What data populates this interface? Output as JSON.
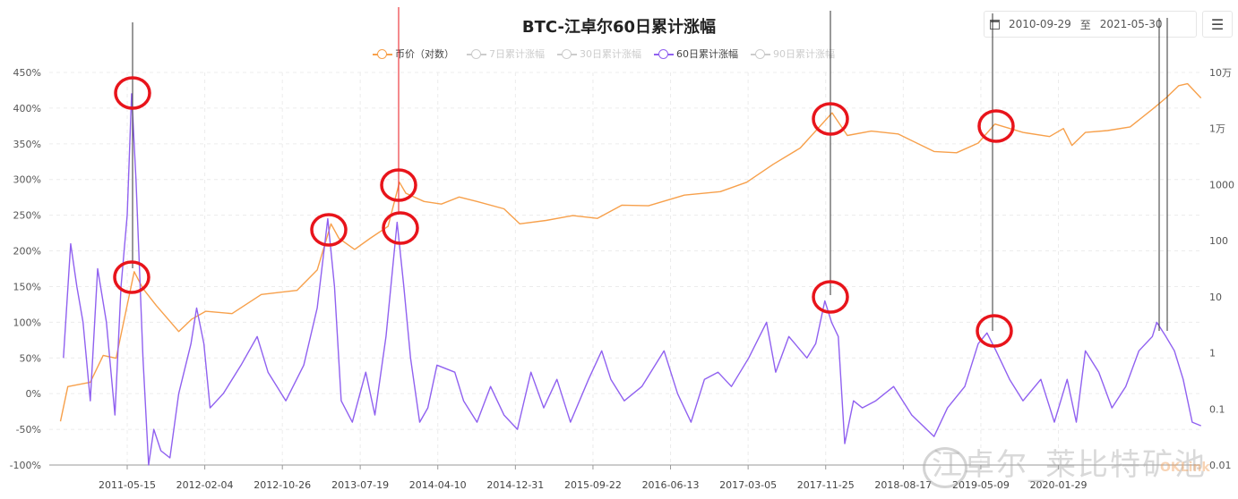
{
  "chart_data": {
    "type": "line",
    "title": "BTC-江卓尔60日累计涨幅",
    "legend": [
      {
        "label": "币价（对数）",
        "color": "#f7a04b",
        "active": true
      },
      {
        "label": "7日累计涨幅",
        "color": "#cccccc",
        "active": false
      },
      {
        "label": "30日累计涨幅",
        "color": "#cccccc",
        "active": false
      },
      {
        "label": "60日累计涨幅",
        "color": "#9061f0",
        "active": true
      },
      {
        "label": "90日累计涨幅",
        "color": "#cccccc",
        "active": false
      }
    ],
    "legend_position": "top-center",
    "x_range": [
      "2010-09-29",
      "2021-05-30"
    ],
    "x_ticks": [
      "2011-05-15",
      "2012-02-04",
      "2012-10-26",
      "2013-07-19",
      "2014-04-10",
      "2014-12-31",
      "2015-09-22",
      "2016-06-13",
      "2017-03-05",
      "2017-11-25",
      "2018-08-17",
      "2019-05-09",
      "2020-01-29"
    ],
    "y_left": {
      "ticks": [
        "450%",
        "400%",
        "350%",
        "300%",
        "250%",
        "200%",
        "150%",
        "100%",
        "50%",
        "0%",
        "-50%",
        "-100%"
      ],
      "range": [
        -100,
        450
      ],
      "unit": "%"
    },
    "y_right": {
      "ticks": [
        "10万",
        "1万",
        "1000",
        "100",
        "10",
        "1",
        "0.1",
        "0.01"
      ],
      "scale": "log",
      "range": [
        0.01,
        100000
      ]
    },
    "grid": true,
    "series": [
      {
        "name": "币价（对数）",
        "axis": "right",
        "color": "#f7a04b",
        "points": [
          [
            "2010-09-29",
            0.06
          ],
          [
            "2010-10-24",
            0.25
          ],
          [
            "2011-01-09",
            0.3
          ],
          [
            "2011-02-22",
            0.9
          ],
          [
            "2011-04-07",
            0.8
          ],
          [
            "2011-04-30",
            3
          ],
          [
            "2011-06-08",
            28
          ],
          [
            "2011-07-08",
            14
          ],
          [
            "2011-08-22",
            7
          ],
          [
            "2011-11-07",
            2.4
          ],
          [
            "2011-12-22",
            4
          ],
          [
            "2012-02-07",
            5.5
          ],
          [
            "2012-05-07",
            5
          ],
          [
            "2012-08-15",
            11
          ],
          [
            "2012-12-15",
            13
          ],
          [
            "2013-02-22",
            30
          ],
          [
            "2013-04-10",
            200
          ],
          [
            "2013-05-07",
            110
          ],
          [
            "2013-06-30",
            70
          ],
          [
            "2013-08-22",
            110
          ],
          [
            "2013-10-22",
            180
          ],
          [
            "2013-11-30",
            1100
          ],
          [
            "2013-12-22",
            700
          ],
          [
            "2014-02-22",
            500
          ],
          [
            "2014-04-22",
            450
          ],
          [
            "2014-06-22",
            600
          ],
          [
            "2014-08-22",
            500
          ],
          [
            "2014-11-22",
            370
          ],
          [
            "2015-01-15",
            200
          ],
          [
            "2015-04-15",
            230
          ],
          [
            "2015-07-15",
            280
          ],
          [
            "2015-10-07",
            250
          ],
          [
            "2015-12-30",
            430
          ],
          [
            "2016-03-30",
            420
          ],
          [
            "2016-07-30",
            650
          ],
          [
            "2016-11-30",
            750
          ],
          [
            "2017-02-28",
            1100
          ],
          [
            "2017-05-30",
            2300
          ],
          [
            "2017-08-30",
            4500
          ],
          [
            "2017-12-17",
            19000
          ],
          [
            "2018-02-07",
            7500
          ],
          [
            "2018-04-30",
            9000
          ],
          [
            "2018-07-30",
            8000
          ],
          [
            "2018-11-30",
            3900
          ],
          [
            "2019-02-15",
            3700
          ],
          [
            "2019-04-30",
            5500
          ],
          [
            "2019-06-26",
            12000
          ],
          [
            "2019-09-30",
            8500
          ],
          [
            "2019-12-30",
            7200
          ],
          [
            "2020-02-15",
            10000
          ],
          [
            "2020-03-15",
            5000
          ],
          [
            "2020-04-30",
            8500
          ],
          [
            "2020-07-15",
            9200
          ],
          [
            "2020-09-30",
            10700
          ],
          [
            "2020-12-15",
            22000
          ],
          [
            "2021-01-30",
            35000
          ],
          [
            "2021-03-15",
            58000
          ],
          [
            "2021-04-14",
            63000
          ],
          [
            "2021-05-30",
            35000
          ]
        ]
      },
      {
        "name": "60日累计涨幅",
        "axis": "left",
        "color": "#9061f0",
        "points": [
          [
            "2010-10-09",
            50
          ],
          [
            "2010-11-03",
            210
          ],
          [
            "2010-11-24",
            150
          ],
          [
            "2010-12-15",
            100
          ],
          [
            "2011-01-09",
            -10
          ],
          [
            "2011-02-03",
            175
          ],
          [
            "2011-03-05",
            100
          ],
          [
            "2011-04-03",
            -30
          ],
          [
            "2011-04-24",
            150
          ],
          [
            "2011-05-15",
            250
          ],
          [
            "2011-05-30",
            420
          ],
          [
            "2011-06-14",
            300
          ],
          [
            "2011-07-08",
            50
          ],
          [
            "2011-07-27",
            -100
          ],
          [
            "2011-08-14",
            -50
          ],
          [
            "2011-09-07",
            -80
          ],
          [
            "2011-10-08",
            -90
          ],
          [
            "2011-11-07",
            0
          ],
          [
            "2011-12-19",
            70
          ],
          [
            "2012-01-07",
            120
          ],
          [
            "2012-02-01",
            70
          ],
          [
            "2012-02-22",
            -20
          ],
          [
            "2012-04-07",
            0
          ],
          [
            "2012-06-07",
            40
          ],
          [
            "2012-08-01",
            80
          ],
          [
            "2012-09-07",
            30
          ],
          [
            "2012-11-07",
            -10
          ],
          [
            "2013-01-07",
            40
          ],
          [
            "2013-02-22",
            120
          ],
          [
            "2013-03-30",
            245
          ],
          [
            "2013-04-22",
            150
          ],
          [
            "2013-05-15",
            -10
          ],
          [
            "2013-06-22",
            -40
          ],
          [
            "2013-08-07",
            30
          ],
          [
            "2013-09-07",
            -30
          ],
          [
            "2013-10-15",
            80
          ],
          [
            "2013-11-22",
            240
          ],
          [
            "2013-12-15",
            150
          ],
          [
            "2014-01-07",
            50
          ],
          [
            "2014-02-07",
            -40
          ],
          [
            "2014-03-07",
            -20
          ],
          [
            "2014-04-07",
            40
          ],
          [
            "2014-06-07",
            30
          ],
          [
            "2014-07-07",
            -10
          ],
          [
            "2014-08-22",
            -40
          ],
          [
            "2014-10-07",
            10
          ],
          [
            "2014-11-22",
            -30
          ],
          [
            "2015-01-07",
            -50
          ],
          [
            "2015-02-22",
            30
          ],
          [
            "2015-04-07",
            -20
          ],
          [
            "2015-05-22",
            20
          ],
          [
            "2015-07-07",
            -40
          ],
          [
            "2015-09-07",
            20
          ],
          [
            "2015-10-22",
            60
          ],
          [
            "2015-11-22",
            20
          ],
          [
            "2016-01-07",
            -10
          ],
          [
            "2016-03-07",
            10
          ],
          [
            "2016-05-22",
            60
          ],
          [
            "2016-07-07",
            0
          ],
          [
            "2016-08-22",
            -40
          ],
          [
            "2016-10-07",
            20
          ],
          [
            "2016-11-22",
            30
          ],
          [
            "2017-01-07",
            10
          ],
          [
            "2017-03-07",
            50
          ],
          [
            "2017-05-07",
            100
          ],
          [
            "2017-06-07",
            30
          ],
          [
            "2017-07-22",
            80
          ],
          [
            "2017-09-22",
            50
          ],
          [
            "2017-10-22",
            70
          ],
          [
            "2017-11-22",
            130
          ],
          [
            "2017-12-15",
            100
          ],
          [
            "2018-01-07",
            80
          ],
          [
            "2018-01-29",
            -70
          ],
          [
            "2018-02-28",
            -10
          ],
          [
            "2018-03-30",
            -20
          ],
          [
            "2018-05-15",
            -10
          ],
          [
            "2018-07-15",
            10
          ],
          [
            "2018-09-15",
            -30
          ],
          [
            "2018-11-30",
            -60
          ],
          [
            "2019-01-15",
            -20
          ],
          [
            "2019-03-15",
            10
          ],
          [
            "2019-04-30",
            70
          ],
          [
            "2019-05-30",
            85
          ],
          [
            "2019-06-30",
            60
          ],
          [
            "2019-08-15",
            20
          ],
          [
            "2019-09-30",
            -10
          ],
          [
            "2019-11-30",
            20
          ],
          [
            "2020-01-15",
            -40
          ],
          [
            "2020-02-28",
            20
          ],
          [
            "2020-03-30",
            -40
          ],
          [
            "2020-04-30",
            60
          ],
          [
            "2020-06-15",
            30
          ],
          [
            "2020-07-30",
            -20
          ],
          [
            "2020-09-15",
            10
          ],
          [
            "2020-10-30",
            60
          ],
          [
            "2020-12-15",
            80
          ],
          [
            "2020-12-30",
            100
          ],
          [
            "2021-01-30",
            80
          ],
          [
            "2021-02-28",
            60
          ],
          [
            "2021-03-30",
            20
          ],
          [
            "2021-04-30",
            -40
          ],
          [
            "2021-05-30",
            -45
          ]
        ]
      }
    ]
  },
  "toolbar": {
    "icon": "calendar-icon",
    "start_date": "2010-09-29",
    "separator": "至",
    "end_date": "2021-05-30",
    "menu_icon": "menu-icon",
    "menu_glyph": "☰"
  },
  "watermark": {
    "text": "江卓尔_莱比特矿池",
    "brand": "OKLink",
    "icon": "weibo-icon"
  },
  "annotation_color": "#e8141b"
}
